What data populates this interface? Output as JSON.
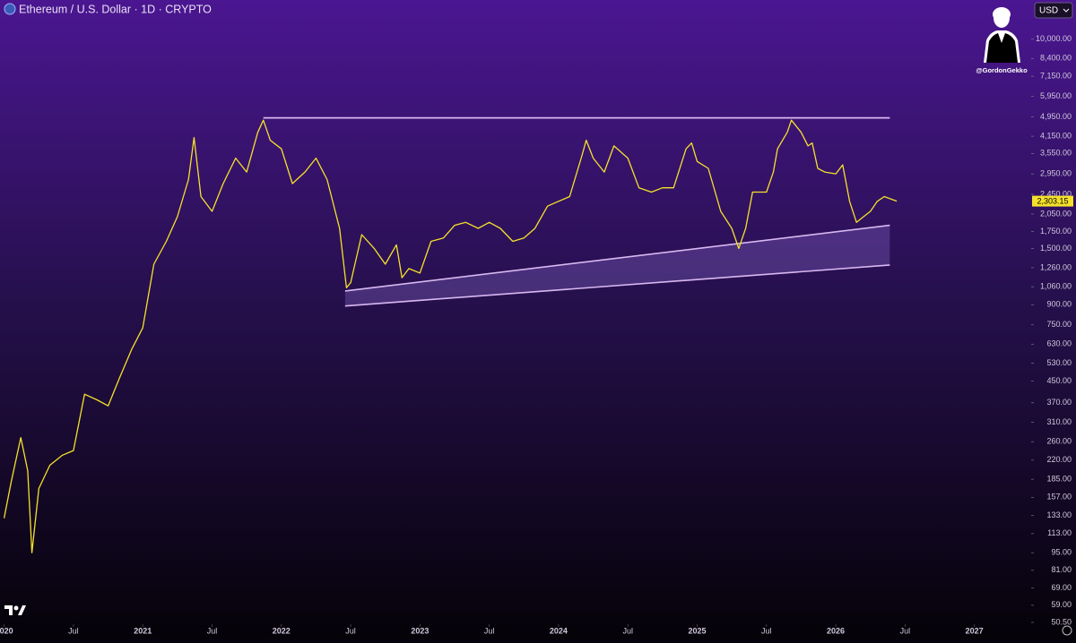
{
  "chart_data": {
    "type": "line",
    "title": "Ethereum / U.S. Dollar · 1D · CRYPTO",
    "currency": "USD",
    "watermark": "@GordonGekko",
    "log_scale": true,
    "color": "#f5e12a",
    "x": [
      2020.0,
      2020.05,
      2020.12,
      2020.17,
      2020.2,
      2020.25,
      2020.33,
      2020.42,
      2020.5,
      2020.58,
      2020.67,
      2020.75,
      2020.83,
      2020.92,
      2021.0,
      2021.08,
      2021.17,
      2021.25,
      2021.33,
      2021.37,
      2021.42,
      2021.5,
      2021.58,
      2021.67,
      2021.75,
      2021.83,
      2021.87,
      2021.92,
      2022.0,
      2022.08,
      2022.17,
      2022.25,
      2022.33,
      2022.42,
      2022.47,
      2022.5,
      2022.58,
      2022.67,
      2022.75,
      2022.83,
      2022.87,
      2022.92,
      2023.0,
      2023.08,
      2023.17,
      2023.25,
      2023.33,
      2023.42,
      2023.5,
      2023.58,
      2023.67,
      2023.75,
      2023.83,
      2023.92,
      2024.0,
      2024.08,
      2024.17,
      2024.2,
      2024.25,
      2024.33,
      2024.4,
      2024.5,
      2024.58,
      2024.67,
      2024.75,
      2024.83,
      2024.92,
      2024.96,
      2025.0,
      2025.08,
      2025.17,
      2025.25,
      2025.3,
      2025.35,
      2025.4,
      2025.5,
      2025.55,
      2025.58,
      2025.65,
      2025.68,
      2025.75,
      2025.8,
      2025.83,
      2025.87,
      2025.92,
      2026.0,
      2026.05,
      2026.1,
      2026.15,
      2026.2,
      2026.25,
      2026.3,
      2026.35,
      2026.44
    ],
    "values": [
      130,
      180,
      270,
      200,
      95,
      170,
      210,
      230,
      240,
      400,
      380,
      360,
      460,
      600,
      730,
      1300,
      1600,
      2000,
      2800,
      4100,
      2400,
      2100,
      2700,
      3400,
      3000,
      4300,
      4800,
      4000,
      3700,
      2700,
      3000,
      3400,
      2800,
      1800,
      1050,
      1100,
      1700,
      1500,
      1300,
      1550,
      1150,
      1250,
      1200,
      1600,
      1650,
      1850,
      1900,
      1800,
      1900,
      1800,
      1600,
      1650,
      1800,
      2200,
      2300,
      2400,
      3500,
      4000,
      3400,
      3000,
      3800,
      3400,
      2600,
      2500,
      2600,
      2600,
      3700,
      3900,
      3300,
      3100,
      2100,
      1800,
      1500,
      1800,
      2500,
      2500,
      3000,
      3700,
      4300,
      4800,
      4300,
      3800,
      3900,
      3100,
      3000,
      2950,
      3200,
      2300,
      1900,
      2000,
      2100,
      2300,
      2400,
      2303.15
    ],
    "last_price": {
      "value": 2303.15,
      "label": "2,303.15"
    },
    "resistance": {
      "x": [
        2021.87,
        2026.39
      ],
      "values": [
        4900,
        4900
      ]
    },
    "channel": {
      "x": [
        2022.46,
        2026.39
      ],
      "upper": [
        1020,
        1850
      ],
      "lower": [
        890,
        1290
      ]
    },
    "xlim": [
      2019.97,
      2027.41
    ],
    "xticks": [
      {
        "value": 2020.0,
        "label": "2020"
      },
      {
        "value": 2020.5,
        "label": "Jul"
      },
      {
        "value": 2021.0,
        "label": "2021"
      },
      {
        "value": 2021.5,
        "label": "Jul"
      },
      {
        "value": 2022.0,
        "label": "2022"
      },
      {
        "value": 2022.5,
        "label": "Jul"
      },
      {
        "value": 2023.0,
        "label": "2023"
      },
      {
        "value": 2023.5,
        "label": "Jul"
      },
      {
        "value": 2024.0,
        "label": "2024"
      },
      {
        "value": 2024.5,
        "label": "Jul"
      },
      {
        "value": 2025.0,
        "label": "2025"
      },
      {
        "value": 2025.5,
        "label": "Jul"
      },
      {
        "value": 2026.0,
        "label": "2026"
      },
      {
        "value": 2026.5,
        "label": "Jul"
      },
      {
        "value": 2027.0,
        "label": "2027"
      }
    ],
    "ylim": [
      48.5,
      14270
    ],
    "yticks": [
      {
        "value": 10000,
        "label": "10,000.00"
      },
      {
        "value": 8400,
        "label": "8,400.00"
      },
      {
        "value": 7150,
        "label": "7,150.00"
      },
      {
        "value": 5950,
        "label": "5,950.00"
      },
      {
        "value": 4950,
        "label": "4,950.00"
      },
      {
        "value": 4150,
        "label": "4,150.00"
      },
      {
        "value": 3550,
        "label": "3,550.00"
      },
      {
        "value": 2950,
        "label": "2,950.00"
      },
      {
        "value": 2450,
        "label": "2,450.00"
      },
      {
        "value": 2050,
        "label": "2,050.00"
      },
      {
        "value": 1750,
        "label": "1,750.00"
      },
      {
        "value": 1500,
        "label": "1,500.00"
      },
      {
        "value": 1260,
        "label": "1,260.00"
      },
      {
        "value": 1060,
        "label": "1,060.00"
      },
      {
        "value": 900,
        "label": "900.00"
      },
      {
        "value": 750,
        "label": "750.00"
      },
      {
        "value": 630,
        "label": "630.00"
      },
      {
        "value": 530,
        "label": "530.00"
      },
      {
        "value": 450,
        "label": "450.00"
      },
      {
        "value": 370,
        "label": "370.00"
      },
      {
        "value": 310,
        "label": "310.00"
      },
      {
        "value": 260,
        "label": "260.00"
      },
      {
        "value": 220,
        "label": "220.00"
      },
      {
        "value": 185,
        "label": "185.00"
      },
      {
        "value": 157,
        "label": "157.00"
      },
      {
        "value": 133,
        "label": "133.00"
      },
      {
        "value": 113,
        "label": "113.00"
      },
      {
        "value": 95,
        "label": "95.00"
      },
      {
        "value": 81,
        "label": "81.00"
      },
      {
        "value": 69,
        "label": "69.00"
      },
      {
        "value": 59,
        "label": "59.00"
      },
      {
        "value": 50.5,
        "label": "50.50"
      }
    ]
  }
}
